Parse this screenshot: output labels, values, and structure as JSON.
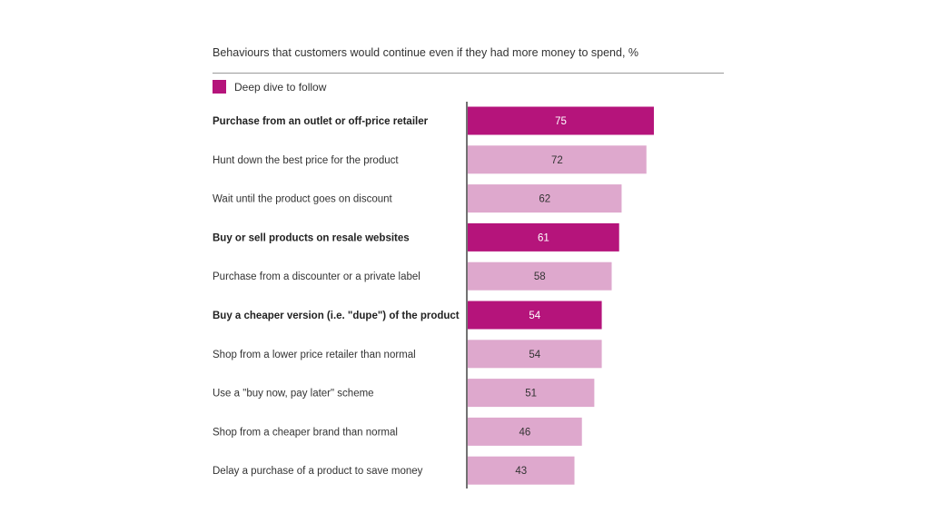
{
  "chart_data": {
    "type": "bar",
    "orientation": "horizontal",
    "title": "Behaviours that customers would continue even if they had more money to spend, %",
    "legend": {
      "label": "Deep dive to follow",
      "color": "#b5147b"
    },
    "categories": [
      "Purchase from an outlet or off-price retailer",
      "Hunt down the best price for the product",
      "Wait until the product goes on discount",
      "Buy or sell products on resale websites",
      "Purchase from a discounter or a private label",
      "Buy a cheaper version (i.e. \"dupe\") of the product",
      "Shop from a lower price retailer than normal",
      "Use a \"buy now, pay later\" scheme",
      "Shop from a cheaper brand than normal",
      "Delay a purchase of a product to save money"
    ],
    "values": [
      75,
      72,
      62,
      61,
      58,
      54,
      54,
      51,
      46,
      43
    ],
    "highlighted": [
      true,
      false,
      false,
      true,
      false,
      true,
      false,
      false,
      false,
      false
    ],
    "colors": {
      "highlight": "#b5147b",
      "normal": "#dea8cd",
      "highlight_text": "#ffffff",
      "normal_text": "#333333",
      "axis": "#444444"
    },
    "xlim": [
      0,
      100
    ]
  }
}
